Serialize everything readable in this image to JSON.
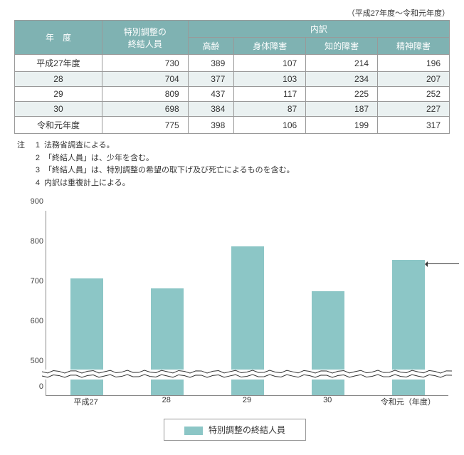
{
  "period_label": "（平成27年度～令和元年度）",
  "table": {
    "header": {
      "year": "年　度",
      "total": "特別調整の\n終結人員",
      "breakdown": "内訳",
      "cols": [
        "高齢",
        "身体障害",
        "知的障害",
        "精神障害"
      ]
    },
    "rows": [
      {
        "year": "平成27年度",
        "total": 730,
        "vals": [
          389,
          107,
          214,
          196
        ],
        "alt": false
      },
      {
        "year": "28",
        "total": 704,
        "vals": [
          377,
          103,
          234,
          207
        ],
        "alt": true
      },
      {
        "year": "29",
        "total": 809,
        "vals": [
          437,
          117,
          225,
          252
        ],
        "alt": false
      },
      {
        "year": "30",
        "total": 698,
        "vals": [
          384,
          87,
          187,
          227
        ],
        "alt": true
      },
      {
        "year": "令和元年度",
        "total": 775,
        "vals": [
          398,
          106,
          199,
          317
        ],
        "alt": false
      }
    ]
  },
  "notes": {
    "prefix": "注",
    "items": [
      "法務省調査による。",
      "「終結人員」は、少年を含む。",
      "「終結人員」は、特別調整の希望の取下げ及び死亡によるものを含む。",
      "内訳は重複計上による。"
    ]
  },
  "chart": {
    "type": "bar",
    "series_label": "特別調整の終結人員",
    "bar_color": "#8cc6c6",
    "categories": [
      "平成27",
      "28",
      "29",
      "30",
      "令和元"
    ],
    "x_suffix": "（年度）",
    "values": [
      730,
      704,
      809,
      698,
      775
    ],
    "y_ticks": [
      0,
      500,
      600,
      700,
      800,
      900
    ],
    "callout": {
      "index": 4,
      "value": 775
    },
    "break_between": [
      0,
      500
    ]
  }
}
